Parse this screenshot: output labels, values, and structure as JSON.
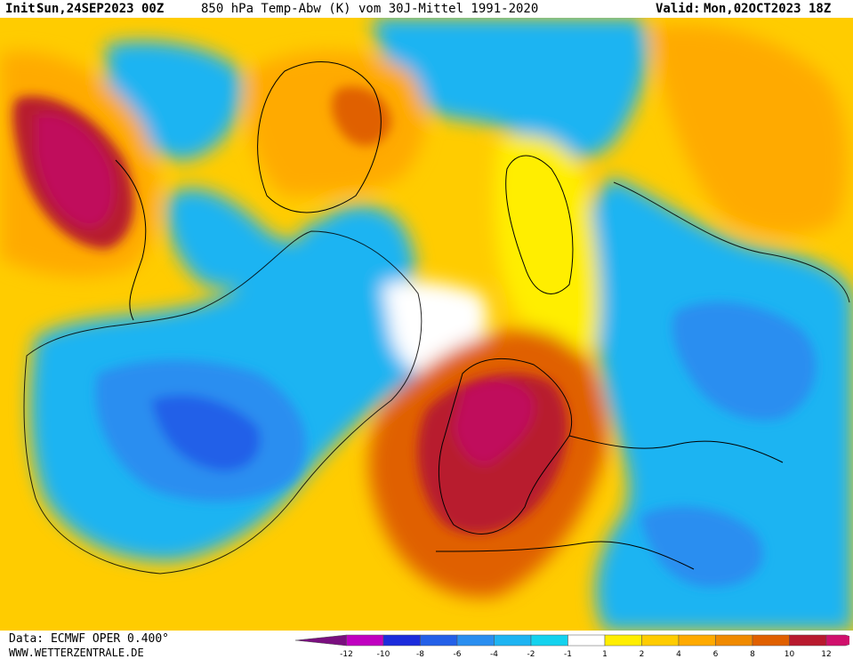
{
  "header": {
    "init_label": "Init:",
    "init_value": "Sun,24SEP2023 00Z",
    "title": "850 hPa Temp-Abw (K) vom 30J-Mittel 1991-2020",
    "valid_label": "Valid:",
    "valid_value": "Mon,02OCT2023 18Z"
  },
  "footer": {
    "data_source": "Data: ECMWF OPER 0.400°",
    "website": "WWW.WETTERZENTRALE.DE"
  },
  "legend": {
    "ticks": [
      "-12",
      "-10",
      "-8",
      "-6",
      "-4",
      "-2",
      "-1",
      "1",
      "2",
      "4",
      "6",
      "8",
      "10",
      "12"
    ],
    "colors": [
      "#7a0f7f",
      "#c000c0",
      "#1c2cdc",
      "#2460e8",
      "#2a8ef0",
      "#1eb4f2",
      "#14d2ee",
      "#ffffff",
      "#ffee00",
      "#ffcc00",
      "#ffaa00",
      "#f08a00",
      "#e06000",
      "#b81a2e",
      "#d0106c"
    ]
  },
  "map": {
    "subject": "850 hPa temperature anomaly, North Atlantic and Europe",
    "colors": {
      "warm_max": "#c0105c",
      "warm_high": "#b81a2e",
      "warm_mid": "#e06000",
      "warm_low": "#ffaa00",
      "warm_min": "#ffee00",
      "neutral": "#ffffff",
      "cold_min": "#14d2ee",
      "cold_low": "#1eb4f2",
      "cold_mid": "#2a8ef0",
      "cold_high": "#2460e8"
    }
  }
}
